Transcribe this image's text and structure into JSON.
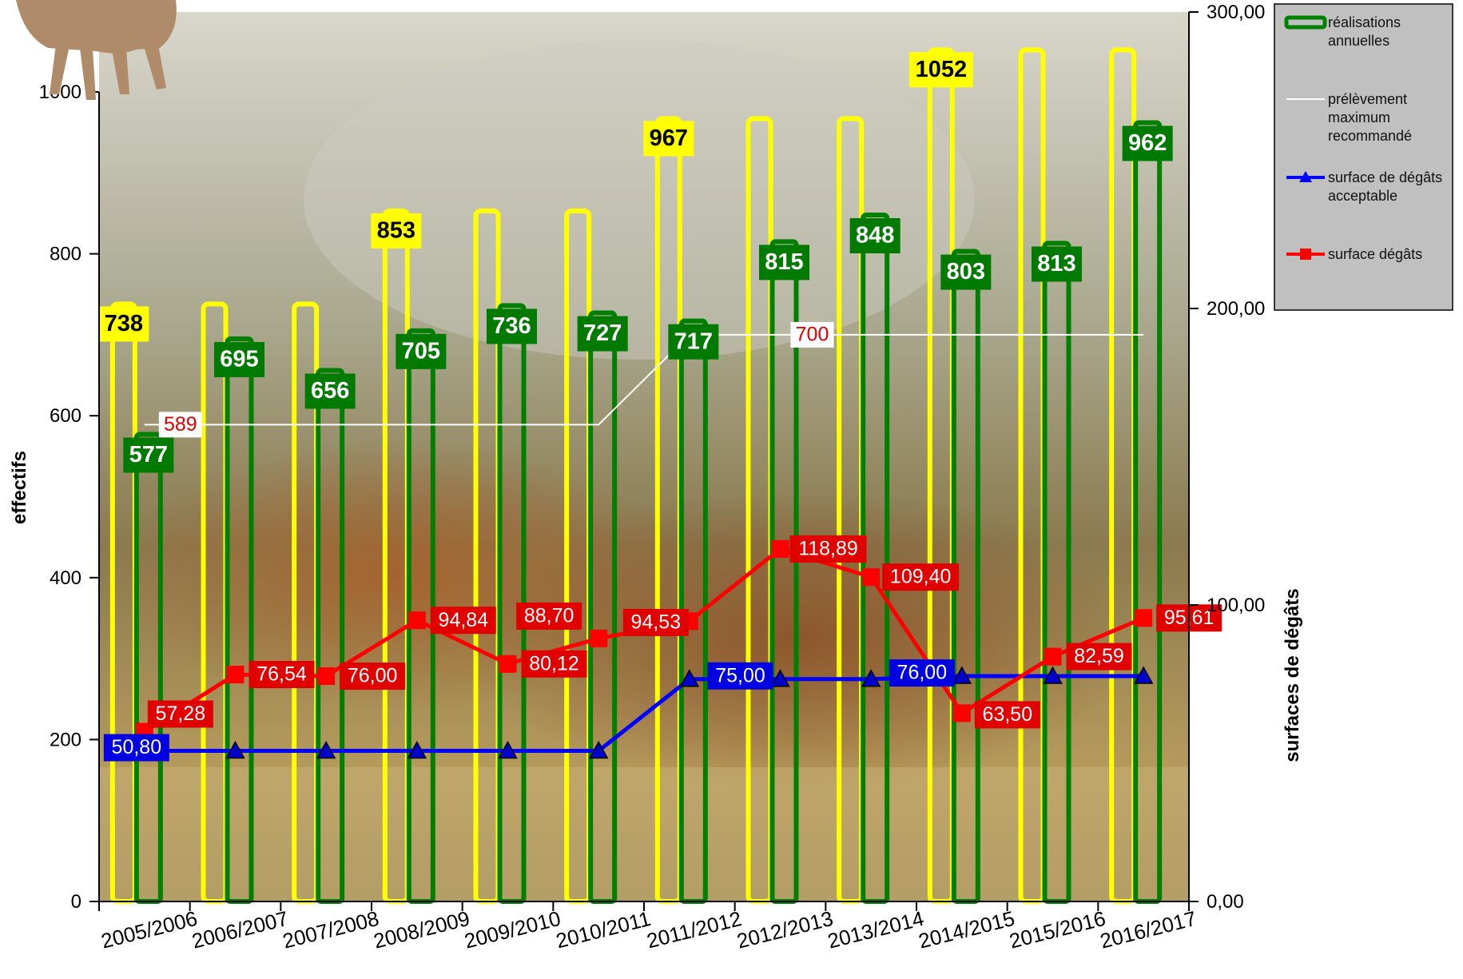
{
  "chart_data": {
    "type": "bar",
    "categories": [
      "2005/2006",
      "2006/2007",
      "2007/2008",
      "2008/2009",
      "2009/2010",
      "2010/2011",
      "2011/2012",
      "2012/2013",
      "2013/2014",
      "2014/2015",
      "2015/2016",
      "2016/2017"
    ],
    "left_axis": {
      "title": "effectifs",
      "ylim": [
        0,
        1000
      ],
      "ticks": [
        0,
        200,
        400,
        600,
        800,
        1000
      ],
      "tick_labels": [
        "0",
        "200",
        "400",
        "600",
        "800",
        "1000"
      ]
    },
    "right_axis": {
      "title": "surfaces de dégâts",
      "ylim": [
        0,
        300
      ],
      "ticks": [
        0,
        100,
        200,
        300
      ],
      "tick_labels": [
        "0,00",
        "100,00",
        "200,00",
        "300,00"
      ]
    },
    "series": [
      {
        "name": "",
        "kind": "bar",
        "axis": "left",
        "color": "#ffff00",
        "values": [
          738,
          738,
          738,
          853,
          853,
          853,
          967,
          967,
          967,
          1052,
          1052,
          1052
        ],
        "labels": [
          "738",
          "",
          "",
          "853",
          "",
          "",
          "967",
          "",
          "",
          "1052",
          "",
          ""
        ]
      },
      {
        "name": "réalisations annuelles",
        "kind": "bar",
        "axis": "left",
        "color": "#008000",
        "values": [
          577,
          695,
          656,
          705,
          736,
          727,
          717,
          815,
          848,
          803,
          813,
          962
        ],
        "labels": [
          "577",
          "695",
          "656",
          "705",
          "736",
          "727",
          "717",
          "815",
          "848",
          "803",
          "813",
          "962"
        ]
      },
      {
        "name": "prélèvement maximum recommandé",
        "kind": "line",
        "axis": "left",
        "color": "#ffffff",
        "values": [
          589,
          589,
          589,
          589,
          589,
          589,
          700,
          700,
          700,
          700,
          700,
          700
        ],
        "labels": [
          "589",
          "",
          "",
          "",
          "",
          "",
          "",
          "700",
          "",
          "",
          "",
          ""
        ]
      },
      {
        "name": "surface de dégâts acceptable",
        "kind": "line",
        "axis": "right",
        "color": "#0000ff",
        "values": [
          50.8,
          50.8,
          50.8,
          50.8,
          50.8,
          50.8,
          75.0,
          75.0,
          75.0,
          76.0,
          76.0,
          76.0
        ],
        "labels": [
          "50,80",
          "",
          "",
          "",
          "",
          "",
          "",
          "75,00",
          "",
          "76,00",
          "",
          ""
        ]
      },
      {
        "name": "surface dégâts",
        "kind": "line",
        "axis": "right",
        "color": "#ff0000",
        "values": [
          57.28,
          76.54,
          76.0,
          94.84,
          80.12,
          88.7,
          94.53,
          118.89,
          109.4,
          63.5,
          82.59,
          95.61
        ],
        "labels": [
          "57,28",
          "76,54",
          "76,00",
          "94,84",
          "80,12",
          "88,70",
          "94,53",
          "118,89",
          "109,40",
          "63,50",
          "82,59",
          "95,61"
        ]
      }
    ],
    "legend": {
      "position": "top-right",
      "entries": [
        {
          "lines": [
            "réalisations",
            "annuelles"
          ],
          "color": "#008000",
          "symbol": "bar"
        },
        {
          "lines": [
            "prélèvement",
            "maximum",
            "recommandé"
          ],
          "color": "#ffffff",
          "symbol": "line"
        },
        {
          "lines": [
            "surface de dégâts",
            "acceptable"
          ],
          "color": "#0000ff",
          "symbol": "triangle"
        },
        {
          "lines": [
            "surface dégâts"
          ],
          "color": "#ff0000",
          "symbol": "square"
        }
      ]
    },
    "background": "photo of red deer in grassland",
    "grid": false
  }
}
